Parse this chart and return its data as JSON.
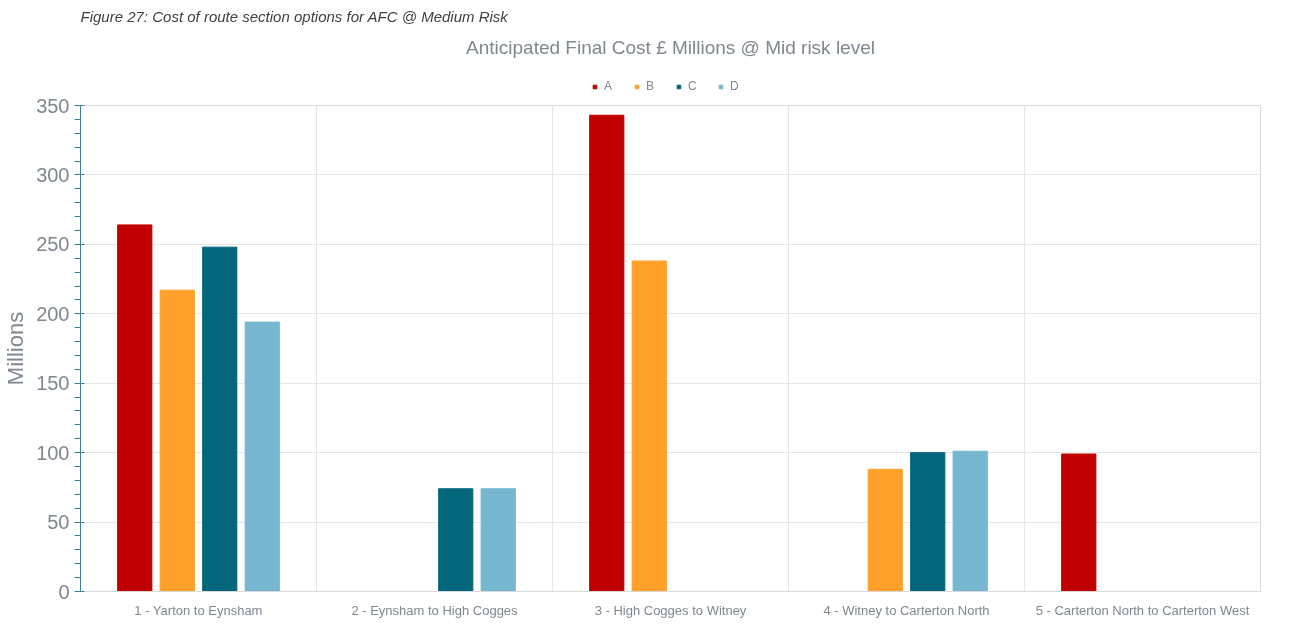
{
  "chart_data": {
    "type": "bar",
    "title": "Anticipated Final Cost £ Millions @ Mid risk level",
    "ylabel": "Millions",
    "annotations": [
      "Figure 27: Cost of route section options for AFC @ Medium Risk"
    ],
    "categories": [
      "1 - Yarton to Eynsham",
      "2 - Eynsham to High Cogges",
      "3 - High Cogges to Witney",
      "4 - Witney to Carterton North",
      "5 - Carterton North to Carterton West"
    ],
    "series": [
      {
        "name": "A",
        "color": "#c00000",
        "values": [
          264,
          null,
          343,
          null,
          99
        ]
      },
      {
        "name": "B",
        "color": "#ffa02b",
        "values": [
          217,
          null,
          238,
          88,
          null
        ]
      },
      {
        "name": "C",
        "color": "#03667b",
        "values": [
          248,
          74,
          null,
          100,
          null
        ]
      },
      {
        "name": "D",
        "color": "#76b7cf",
        "values": [
          194,
          74,
          null,
          101,
          null
        ]
      }
    ],
    "ylim": [
      0,
      350
    ],
    "yticks": [
      0,
      50,
      100,
      150,
      200,
      250,
      300,
      350
    ],
    "grid": true,
    "legend": "top"
  }
}
